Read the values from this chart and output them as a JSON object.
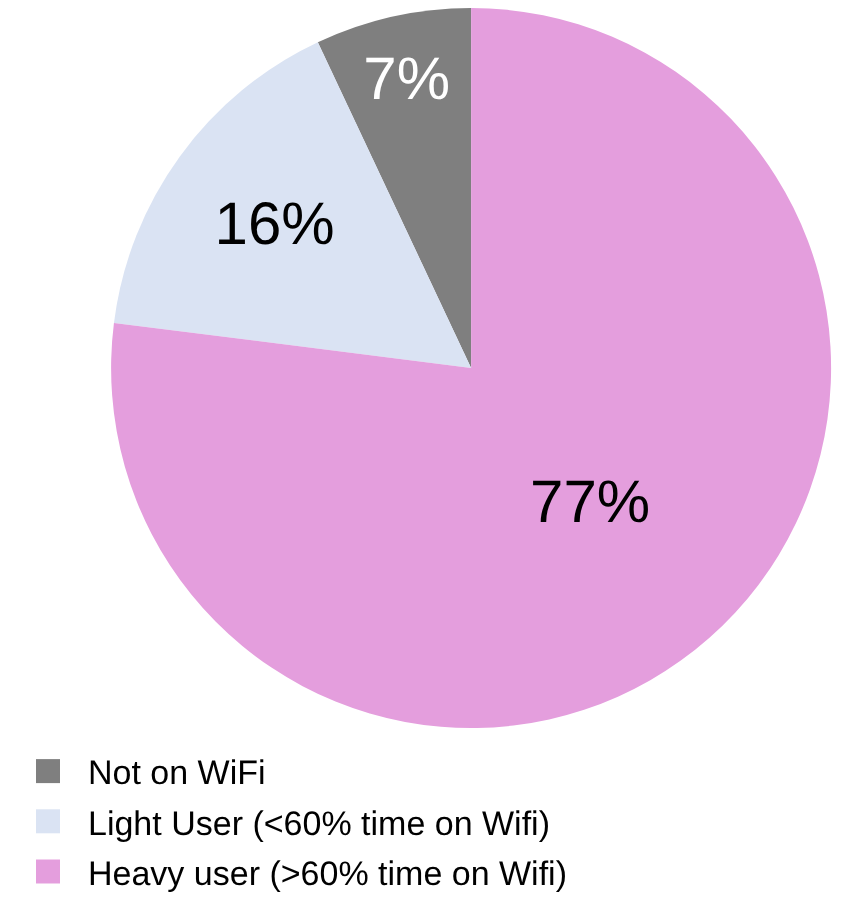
{
  "chart_data": {
    "type": "pie",
    "categories": [
      "Not on WiFi",
      "Light User (<60% time on Wifi)",
      "Heavy user (>60% time on Wifi)"
    ],
    "values": [
      7,
      16,
      77
    ],
    "colors": [
      "#7f7f7f",
      "#dae3f3",
      "#e49edd"
    ],
    "value_labels": [
      "7%",
      "16%",
      "77%"
    ],
    "legend": "bottom left"
  }
}
